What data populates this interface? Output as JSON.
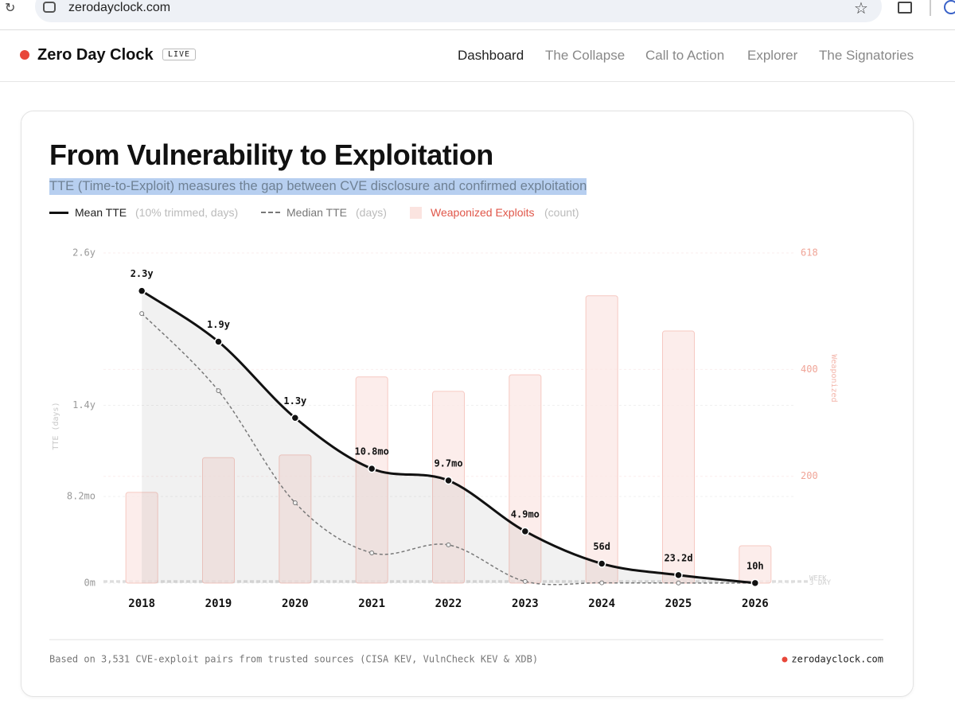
{
  "browser": {
    "url": "zerodayclock.com"
  },
  "nav": {
    "brand": "Zero Day Clock",
    "badge": "LIVE",
    "links": [
      "Dashboard",
      "The Collapse",
      "Call to Action",
      "Explorer",
      "The Signatories"
    ]
  },
  "chart_data": {
    "type": "line",
    "title": "From Vulnerability to Exploitation",
    "subtitle": "TTE (Time-to-Exploit) measures the gap between CVE disclosure and confirmed exploitation",
    "categories": [
      "2018",
      "2019",
      "2020",
      "2021",
      "2022",
      "2023",
      "2024",
      "2025",
      "2026"
    ],
    "ylabel": "TTE (days)",
    "y2label": "Weaponized",
    "ylim": [
      0,
      949
    ],
    "yticks": [
      {
        "value": 0,
        "label": "0m"
      },
      {
        "value": 249,
        "label": "8.2mo"
      },
      {
        "value": 511,
        "label": "1.4y"
      },
      {
        "value": 949,
        "label": "2.6y"
      }
    ],
    "y2lim": [
      0,
      618
    ],
    "y2ticks": [
      200,
      400,
      618
    ],
    "reference_lines": [
      {
        "label": "WEEK",
        "value": 7
      },
      {
        "label": "3 DAY",
        "value": 3
      }
    ],
    "series": [
      {
        "name": "Mean TTE",
        "note": "(10% trimmed, days)",
        "color": "#111111",
        "style": "solid",
        "values": [
          840,
          694,
          475,
          329,
          295,
          149,
          56,
          23.2,
          0.42
        ],
        "value_labels": [
          "2.3y",
          "1.9y",
          "1.3y",
          "10.8mo",
          "9.7mo",
          "4.9mo",
          "56d",
          "23.2d",
          "10h"
        ]
      },
      {
        "name": "Median TTE",
        "note": "(days)",
        "color": "#777777",
        "style": "dashed",
        "values": [
          775,
          553,
          231,
          87,
          110,
          5,
          1,
          0.5,
          0.1
        ]
      },
      {
        "name": "Weaponized Exploits",
        "note": "(count)",
        "color": "#f6c9c2",
        "type": "bar",
        "axis": "y2",
        "values": [
          170,
          235,
          240,
          386,
          359,
          390,
          538,
          472,
          70
        ]
      }
    ],
    "footer": "Based on 3,531 CVE-exploit pairs from trusted sources (CISA KEV, VulnCheck KEV & XDB)",
    "source": "zerodayclock.com"
  }
}
